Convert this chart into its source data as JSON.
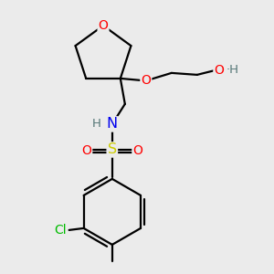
{
  "bg_color": "#ebebeb",
  "atom_colors": {
    "O": "#ff0000",
    "N": "#0000ee",
    "S": "#cccc00",
    "Cl": "#00bb00",
    "C": "#000000",
    "H": "#557777"
  },
  "font_size_atom": 9.5,
  "fig_size": [
    3.0,
    3.0
  ],
  "dpi": 100,
  "lw": 1.6
}
